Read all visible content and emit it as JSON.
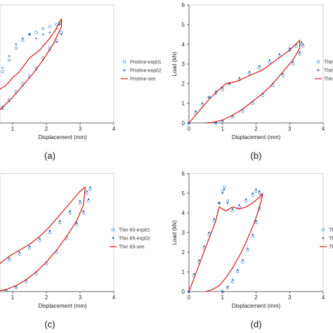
{
  "chart_data": [
    {
      "panel_label": "(a)",
      "type": "line",
      "xlabel": "Displacement (mm)",
      "ylabel": "",
      "xlim": [
        0,
        4
      ],
      "ylim": [
        0,
        6
      ],
      "x_ticks": [
        "1",
        "2",
        "3",
        "4"
      ],
      "y_ticks": [],
      "series": [
        {
          "name": "Pristine-exp01",
          "style": "open-circle",
          "color": "#4a90c8",
          "x": [
            0.3,
            0.5,
            0.7,
            0.9,
            1.1,
            1.3,
            1.5,
            1.7,
            1.9,
            2.1,
            2.3,
            2.4,
            2.45,
            2.3,
            2.1,
            1.9,
            1.7,
            1.5,
            1.3,
            1.1,
            0.9,
            0.7,
            0.5,
            0.3
          ],
          "y": [
            1.1,
            2.0,
            2.6,
            3.2,
            3.8,
            4.2,
            4.5,
            4.6,
            4.8,
            4.9,
            5.0,
            5.1,
            4.6,
            4.2,
            3.8,
            3.3,
            2.8,
            2.4,
            2.0,
            1.6,
            1.2,
            0.8,
            0.4,
            0.1
          ]
        },
        {
          "name": "Pristine-exp02",
          "style": "filled-dot",
          "color": "#2b6cb0",
          "x": [
            0.3,
            0.5,
            0.7,
            0.9,
            1.1,
            1.3,
            1.5,
            1.7,
            1.9,
            2.1,
            2.3,
            2.4,
            2.45,
            2.3,
            2.1,
            1.9,
            1.7,
            1.5,
            1.3,
            1.1,
            0.9,
            0.7,
            0.5,
            0.3
          ],
          "y": [
            1.2,
            2.1,
            2.8,
            3.4,
            4.0,
            4.3,
            4.5,
            4.3,
            4.5,
            4.6,
            4.8,
            5.0,
            4.5,
            4.1,
            3.7,
            3.2,
            2.7,
            2.3,
            1.9,
            1.5,
            1.1,
            0.7,
            0.3,
            0.05
          ]
        },
        {
          "name": "Pristine-sim",
          "style": "line",
          "color": "#d62728",
          "x": [
            0.0,
            0.3,
            0.6,
            0.8,
            1.0,
            1.2,
            1.5,
            1.8,
            2.1,
            2.3,
            2.45,
            2.45,
            2.2,
            1.9,
            1.6,
            1.3,
            1.0,
            0.7,
            0.4,
            0.1
          ],
          "y": [
            0.0,
            1.3,
            1.7,
            1.9,
            2.3,
            2.6,
            3.3,
            3.7,
            4.3,
            4.8,
            5.3,
            4.9,
            4.0,
            3.2,
            2.5,
            1.9,
            1.3,
            0.8,
            0.3,
            0.0
          ]
        }
      ]
    },
    {
      "panel_label": "(b)",
      "type": "line",
      "xlabel": "Displacement (mm)",
      "ylabel": "Load (kN)",
      "xlim": [
        0,
        4
      ],
      "ylim": [
        0,
        6
      ],
      "x_ticks": [
        "0",
        "1",
        "2",
        "3",
        "4"
      ],
      "y_ticks": [
        "0",
        "1",
        "2",
        "3",
        "4",
        "5",
        "6"
      ],
      "series": [
        {
          "name": "Thin",
          "style": "open-circle",
          "color": "#4a90c8",
          "x": [
            0.0,
            0.2,
            0.4,
            0.6,
            0.8,
            1.0,
            1.2,
            1.5,
            1.8,
            2.1,
            2.4,
            2.7,
            3.0,
            3.2,
            3.35,
            3.4,
            3.3,
            3.1,
            2.8,
            2.5,
            2.2,
            1.9,
            1.6,
            1.3,
            1.0,
            0.8
          ],
          "y": [
            0.0,
            0.5,
            0.9,
            1.3,
            1.5,
            1.7,
            2.0,
            2.2,
            2.5,
            2.8,
            3.1,
            3.4,
            3.7,
            3.9,
            4.0,
            3.9,
            3.5,
            3.0,
            2.4,
            1.9,
            1.4,
            1.0,
            0.6,
            0.3,
            0.05,
            0.0
          ]
        },
        {
          "name": "Thin",
          "style": "filled-dot",
          "color": "#2b6cb0",
          "x": [
            0.0,
            0.2,
            0.4,
            0.6,
            0.8,
            1.0,
            1.2,
            1.5,
            1.8,
            2.1,
            2.4,
            2.7,
            3.0,
            3.2,
            3.35,
            3.4,
            3.3,
            3.1,
            2.8,
            2.5,
            2.2,
            1.9,
            1.6,
            1.3,
            1.0,
            0.8
          ],
          "y": [
            0.0,
            0.6,
            1.0,
            1.3,
            1.6,
            1.8,
            2.0,
            2.3,
            2.6,
            2.9,
            3.2,
            3.5,
            3.8,
            4.0,
            4.1,
            4.0,
            3.6,
            3.1,
            2.5,
            2.0,
            1.5,
            1.1,
            0.7,
            0.35,
            0.1,
            0.0
          ]
        },
        {
          "name": "Thin",
          "style": "line",
          "color": "#d62728",
          "x": [
            0.0,
            0.3,
            0.6,
            0.9,
            1.1,
            1.4,
            1.8,
            2.2,
            2.6,
            3.0,
            3.3,
            3.3,
            3.1,
            2.8,
            2.5,
            2.2,
            1.9,
            1.6,
            1.3,
            1.0,
            0.7,
            0.5
          ],
          "y": [
            0.0,
            0.6,
            1.2,
            1.7,
            2.0,
            2.1,
            2.4,
            2.7,
            3.2,
            3.7,
            4.2,
            3.8,
            3.2,
            2.6,
            2.0,
            1.5,
            1.1,
            0.7,
            0.4,
            0.15,
            0.02,
            0.0
          ]
        }
      ]
    },
    {
      "panel_label": "(c)",
      "type": "line",
      "xlabel": "Displacement (mm)",
      "ylabel": "",
      "xlim": [
        0,
        4
      ],
      "ylim": [
        0,
        6
      ],
      "x_ticks": [
        "1",
        "2",
        "3",
        "4"
      ],
      "y_ticks": [],
      "series": [
        {
          "name": "Thin 65-exp01",
          "style": "open-circle",
          "color": "#4a90c8",
          "x": [
            0.3,
            0.6,
            0.9,
            1.2,
            1.5,
            1.8,
            2.1,
            2.4,
            2.7,
            3.0,
            3.2,
            3.3,
            3.25,
            3.1,
            2.9,
            2.6,
            2.3,
            2.0,
            1.7,
            1.4,
            1.1,
            0.8,
            0.5
          ],
          "y": [
            1.0,
            1.3,
            1.6,
            1.9,
            2.2,
            2.6,
            3.0,
            3.5,
            4.0,
            4.5,
            5.0,
            5.2,
            4.6,
            4.0,
            3.4,
            2.7,
            2.0,
            1.4,
            0.9,
            0.5,
            0.2,
            0.05,
            0.0
          ]
        },
        {
          "name": "Thin 65-exp02",
          "style": "filled-dot",
          "color": "#2b6cb0",
          "x": [
            0.3,
            0.6,
            0.9,
            1.2,
            1.5,
            1.8,
            2.1,
            2.4,
            2.7,
            3.0,
            3.2,
            3.3,
            3.25,
            3.1,
            2.9,
            2.6,
            2.3,
            2.0,
            1.7,
            1.4,
            1.1,
            0.8,
            0.5
          ],
          "y": [
            1.1,
            1.4,
            1.7,
            2.0,
            2.3,
            2.7,
            3.1,
            3.6,
            4.1,
            4.6,
            5.1,
            5.3,
            4.7,
            4.1,
            3.5,
            2.8,
            2.1,
            1.5,
            1.0,
            0.6,
            0.25,
            0.08,
            0.0
          ]
        },
        {
          "name": "Thin 65-sim",
          "style": "line",
          "color": "#d62728",
          "x": [
            0.0,
            0.3,
            0.6,
            0.9,
            1.2,
            1.5,
            1.8,
            2.1,
            2.4,
            2.7,
            3.0,
            3.15,
            3.1,
            2.9,
            2.6,
            2.3,
            2.0,
            1.7,
            1.4,
            1.1,
            0.8,
            0.5,
            0.2
          ],
          "y": [
            0.0,
            0.9,
            1.4,
            1.8,
            2.1,
            2.4,
            2.8,
            3.3,
            3.9,
            4.5,
            5.1,
            5.3,
            4.4,
            3.6,
            2.8,
            2.1,
            1.5,
            1.0,
            0.6,
            0.3,
            0.1,
            0.02,
            0.0
          ]
        }
      ]
    },
    {
      "panel_label": "(d)",
      "type": "line",
      "xlabel": "Displacement (mm)",
      "ylabel": "Load (kN)",
      "xlim": [
        0,
        4
      ],
      "ylim": [
        0,
        6
      ],
      "x_ticks": [
        "0",
        "1",
        "2",
        "3",
        "4"
      ],
      "y_ticks": [
        "0",
        "1",
        "2",
        "3",
        "4",
        "5",
        "6"
      ],
      "series": [
        {
          "name": "Thi",
          "style": "open-circle",
          "color": "#4a90c8",
          "x": [
            0.0,
            0.15,
            0.3,
            0.45,
            0.6,
            0.75,
            0.9,
            1.0,
            1.05,
            1.15,
            1.3,
            1.5,
            1.7,
            1.9,
            2.0,
            2.1,
            2.15,
            2.1,
            2.0,
            1.9,
            1.75,
            1.6,
            1.45,
            1.3,
            1.15,
            1.0
          ],
          "y": [
            0.0,
            0.8,
            1.5,
            2.2,
            2.9,
            3.6,
            4.5,
            5.1,
            5.3,
            4.6,
            4.1,
            4.3,
            4.6,
            4.9,
            5.1,
            5.0,
            4.8,
            4.2,
            3.5,
            2.8,
            2.1,
            1.5,
            1.0,
            0.5,
            0.2,
            0.0
          ]
        },
        {
          "name": "Thi",
          "style": "filled-dot",
          "color": "#2b6cb0",
          "x": [
            0.0,
            0.15,
            0.3,
            0.45,
            0.6,
            0.75,
            0.9,
            1.0,
            1.05,
            1.15,
            1.3,
            1.5,
            1.7,
            1.9,
            2.0,
            2.1,
            2.15,
            2.1,
            2.0,
            1.9,
            1.75,
            1.6,
            1.45,
            1.3,
            1.15,
            1.0
          ],
          "y": [
            0.0,
            0.9,
            1.6,
            2.3,
            3.0,
            3.7,
            4.5,
            5.0,
            5.2,
            4.5,
            4.2,
            4.4,
            4.7,
            5.0,
            5.2,
            5.1,
            4.9,
            4.3,
            3.6,
            2.9,
            2.2,
            1.6,
            1.1,
            0.6,
            0.25,
            0.0
          ]
        },
        {
          "name": "Thi",
          "style": "line",
          "color": "#d62728",
          "x": [
            0.0,
            0.2,
            0.4,
            0.6,
            0.8,
            0.9,
            1.1,
            1.3,
            1.5,
            1.7,
            1.9,
            2.1,
            2.2,
            2.15,
            2.05,
            1.9,
            1.7,
            1.5,
            1.3,
            1.1,
            0.9,
            0.7,
            0.5
          ],
          "y": [
            0.0,
            0.9,
            1.8,
            2.7,
            3.6,
            4.3,
            4.1,
            4.3,
            4.2,
            4.3,
            4.5,
            4.8,
            5.0,
            4.6,
            4.0,
            3.3,
            2.5,
            1.8,
            1.2,
            0.7,
            0.3,
            0.1,
            0.0
          ]
        }
      ]
    }
  ]
}
